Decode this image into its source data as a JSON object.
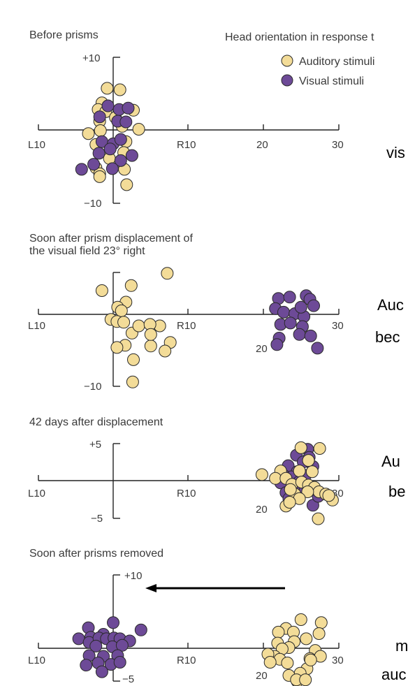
{
  "header": {
    "legend_title": "Head orientation in response t",
    "legend": [
      {
        "label": "Auditory stimuli",
        "color": "#f3dc98"
      },
      {
        "label": "Visual stimuli",
        "color": "#6d4a97"
      }
    ]
  },
  "side_text": [
    "vis",
    "Auc",
    "bec",
    "Au",
    "be",
    "m",
    "auc"
  ],
  "arrow_present": true,
  "chart_data": [
    {
      "type": "scatter",
      "title": "Before prisms",
      "x_tick_labels": [
        "L10",
        "R10",
        "20",
        "30"
      ],
      "x_ticks": [
        -10,
        10,
        20,
        30
      ],
      "y_tick_labels": [
        "+10",
        "−10"
      ],
      "y_ticks": [
        10,
        -10
      ],
      "xlim": [
        -10,
        30
      ],
      "ylim": [
        -10,
        10
      ],
      "series": [
        {
          "name": "Auditory stimuli",
          "color": "#f3dc98",
          "points": [
            [
              -0.8,
              5.7
            ],
            [
              0.9,
              5.5
            ],
            [
              -1.5,
              3.7
            ],
            [
              -2.0,
              2.8
            ],
            [
              -1.0,
              2.5
            ],
            [
              2.7,
              2.7
            ],
            [
              0.3,
              1.7
            ],
            [
              -1.8,
              1.2
            ],
            [
              1.2,
              0.5
            ],
            [
              -3.3,
              -0.5
            ],
            [
              3.4,
              0.1
            ],
            [
              -1.7,
              -0.1
            ],
            [
              1.7,
              -1.6
            ],
            [
              -2.3,
              -2.0
            ],
            [
              1.4,
              -3.1
            ],
            [
              -0.5,
              -3.9
            ],
            [
              -2.3,
              -5.2
            ],
            [
              -1.8,
              -6.0
            ],
            [
              1.5,
              -5.4
            ],
            [
              1.8,
              -7.5
            ],
            [
              -1.8,
              -6.4
            ]
          ]
        },
        {
          "name": "Visual stimuli",
          "color": "#6d4a97",
          "points": [
            [
              -0.7,
              3.3
            ],
            [
              0.8,
              2.8
            ],
            [
              2.0,
              3.0
            ],
            [
              -1.8,
              1.8
            ],
            [
              0.6,
              1.2
            ],
            [
              1.7,
              1.1
            ],
            [
              -1.5,
              -1.6
            ],
            [
              0.0,
              -1.9
            ],
            [
              1.0,
              -1.3
            ],
            [
              -1.9,
              -3.2
            ],
            [
              -0.4,
              -2.6
            ],
            [
              2.5,
              -3.5
            ],
            [
              1.0,
              -4.2
            ],
            [
              -0.1,
              -5.3
            ],
            [
              -4.2,
              -5.4
            ],
            [
              -2.6,
              -4.7
            ]
          ]
        }
      ]
    },
    {
      "type": "scatter",
      "title": "Soon after prism displacement of the visual field 23° right",
      "x_tick_labels": [
        "L10",
        "R10",
        "20",
        "30"
      ],
      "x_ticks": [
        -10,
        10,
        20,
        30
      ],
      "y_tick_labels": [
        "−10"
      ],
      "y_ticks": [
        -10
      ],
      "xlim": [
        -10,
        30
      ],
      "ylim": [
        -10,
        10
      ],
      "series": [
        {
          "name": "Auditory stimuli",
          "color": "#f3dc98",
          "points": [
            [
              -1.5,
              3.3
            ],
            [
              2.4,
              4.0
            ],
            [
              7.2,
              5.7
            ],
            [
              1.7,
              1.7
            ],
            [
              0.6,
              1.0
            ],
            [
              1.1,
              0.5
            ],
            [
              -0.3,
              -0.7
            ],
            [
              0.5,
              -1.0
            ],
            [
              1.4,
              -1.1
            ],
            [
              2.5,
              -2.6
            ],
            [
              3.4,
              -1.6
            ],
            [
              6.2,
              -1.6
            ],
            [
              4.9,
              -1.4
            ],
            [
              5.0,
              -4.4
            ],
            [
              7.6,
              -3.9
            ],
            [
              1.6,
              -4.3
            ],
            [
              6.9,
              -5.1
            ],
            [
              2.7,
              -6.3
            ],
            [
              2.6,
              -9.4
            ],
            [
              5.0,
              -2.8
            ],
            [
              0.5,
              -4.6
            ]
          ]
        },
        {
          "name": "Visual stimuli",
          "color": "#6d4a97",
          "points": [
            [
              22.0,
              2.2
            ],
            [
              23.5,
              2.4
            ],
            [
              25.7,
              2.6
            ],
            [
              26.2,
              2.1
            ],
            [
              26.7,
              1.2
            ],
            [
              21.6,
              0.8
            ],
            [
              22.7,
              0.3
            ],
            [
              24.2,
              0.1
            ],
            [
              25.4,
              -0.3
            ],
            [
              22.3,
              -1.4
            ],
            [
              23.6,
              -1.2
            ],
            [
              25.2,
              -1.7
            ],
            [
              24.8,
              -2.8
            ],
            [
              26.3,
              -3.0
            ],
            [
              22.1,
              -3.3
            ],
            [
              27.2,
              -4.7
            ],
            [
              25.0,
              1.0
            ],
            [
              21.8,
              -4.2
            ]
          ]
        }
      ]
    },
    {
      "type": "scatter",
      "title": "42 days after displacement",
      "x_tick_labels": [
        "L10",
        "R10",
        "20",
        "30"
      ],
      "x_ticks": [
        -10,
        10,
        20,
        30
      ],
      "y_tick_labels": [
        "+5",
        "−5"
      ],
      "y_ticks": [
        5,
        -5
      ],
      "xlim": [
        -10,
        30
      ],
      "ylim": [
        -5,
        5
      ],
      "series": [
        {
          "name": "Visual stimuli",
          "color": "#6d4a97",
          "points": [
            [
              25.9,
              4.2
            ],
            [
              24.4,
              3.4
            ],
            [
              26.1,
              3.1
            ],
            [
              25.3,
              2.5
            ],
            [
              26.6,
              1.9
            ],
            [
              23.3,
              2.0
            ],
            [
              24.5,
              1.2
            ],
            [
              23.7,
              0.5
            ],
            [
              25.6,
              0.7
            ],
            [
              22.3,
              -0.3
            ],
            [
              24.7,
              -0.2
            ],
            [
              26.4,
              -0.8
            ],
            [
              23.0,
              -1.6
            ],
            [
              25.0,
              -1.3
            ],
            [
              23.4,
              -2.4
            ],
            [
              26.6,
              -3.3
            ],
            [
              27.3,
              -2.1
            ],
            [
              22.6,
              0.8
            ],
            [
              26.9,
              -1.2
            ],
            [
              24.0,
              -1.0
            ]
          ]
        },
        {
          "name": "Auditory stimuli",
          "color": "#f3dc98",
          "points": [
            [
              25.0,
              4.4
            ],
            [
              27.5,
              4.3
            ],
            [
              26.0,
              2.7
            ],
            [
              26.5,
              1.2
            ],
            [
              24.8,
              1.3
            ],
            [
              22.3,
              1.3
            ],
            [
              21.6,
              0.3
            ],
            [
              23.0,
              0.3
            ],
            [
              23.8,
              -0.5
            ],
            [
              25.1,
              -0.2
            ],
            [
              26.0,
              -0.6
            ],
            [
              26.8,
              -0.9
            ],
            [
              27.4,
              -1.5
            ],
            [
              28.3,
              -1.8
            ],
            [
              29.2,
              -2.6
            ],
            [
              28.7,
              -2.0
            ],
            [
              25.9,
              -1.5
            ],
            [
              24.2,
              -1.8
            ],
            [
              23.6,
              -1.2
            ],
            [
              24.8,
              -2.4
            ],
            [
              27.3,
              -5.1
            ],
            [
              23.0,
              -3.4
            ],
            [
              23.5,
              -2.9
            ],
            [
              19.8,
              0.8
            ]
          ]
        }
      ]
    },
    {
      "type": "scatter",
      "title": "Soon after prisms removed",
      "x_tick_labels": [
        "L10",
        "R10",
        "20",
        "30"
      ],
      "x_ticks": [
        -10,
        10,
        20,
        30
      ],
      "y_tick_labels": [
        "+10",
        "−5"
      ],
      "y_ticks": [
        10,
        -5
      ],
      "xlim": [
        -10,
        30
      ],
      "ylim": [
        -5,
        10
      ],
      "series": [
        {
          "name": "Visual stimuli",
          "color": "#6d4a97",
          "points": [
            [
              -3.3,
              2.8
            ],
            [
              0.0,
              3.5
            ],
            [
              3.7,
              2.5
            ],
            [
              -1.3,
              1.9
            ],
            [
              -3.0,
              1.5
            ],
            [
              -4.6,
              1.3
            ],
            [
              -3.2,
              0.8
            ],
            [
              -1.9,
              1.4
            ],
            [
              -0.9,
              1.3
            ],
            [
              0.1,
              1.4
            ],
            [
              0.9,
              1.3
            ],
            [
              2.2,
              1.0
            ],
            [
              -2.3,
              0.3
            ],
            [
              -0.1,
              0.2
            ],
            [
              1.2,
              0.4
            ],
            [
              -3.2,
              -1.0
            ],
            [
              -1.3,
              -1.1
            ],
            [
              0.6,
              -1.0
            ],
            [
              -3.6,
              -2.3
            ],
            [
              -2.0,
              -2.0
            ],
            [
              -0.3,
              -2.2
            ],
            [
              0.9,
              -1.9
            ],
            [
              -1.5,
              -3.2
            ]
          ]
        },
        {
          "name": "Auditory stimuli",
          "color": "#f3dc98",
          "points": [
            [
              25.0,
              3.9
            ],
            [
              27.7,
              3.5
            ],
            [
              23.0,
              2.7
            ],
            [
              22.0,
              2.2
            ],
            [
              24.0,
              2.2
            ],
            [
              27.4,
              2.0
            ],
            [
              25.7,
              1.3
            ],
            [
              21.9,
              0.7
            ],
            [
              24.1,
              0.9
            ],
            [
              23.4,
              0.1
            ],
            [
              22.5,
              -0.1
            ],
            [
              21.5,
              -1.1
            ],
            [
              20.6,
              -0.8
            ],
            [
              22.2,
              -1.5
            ],
            [
              20.9,
              -1.9
            ],
            [
              26.9,
              -0.3
            ],
            [
              26.2,
              -1.4
            ],
            [
              27.6,
              -1.1
            ],
            [
              25.8,
              -2.8
            ],
            [
              23.2,
              -2.0
            ],
            [
              24.9,
              -3.4
            ],
            [
              23.4,
              -3.7
            ],
            [
              24.5,
              -4.5
            ],
            [
              26.3,
              -1.6
            ],
            [
              24.4,
              -4.3
            ],
            [
              25.6,
              -4.3
            ]
          ]
        }
      ]
    }
  ]
}
